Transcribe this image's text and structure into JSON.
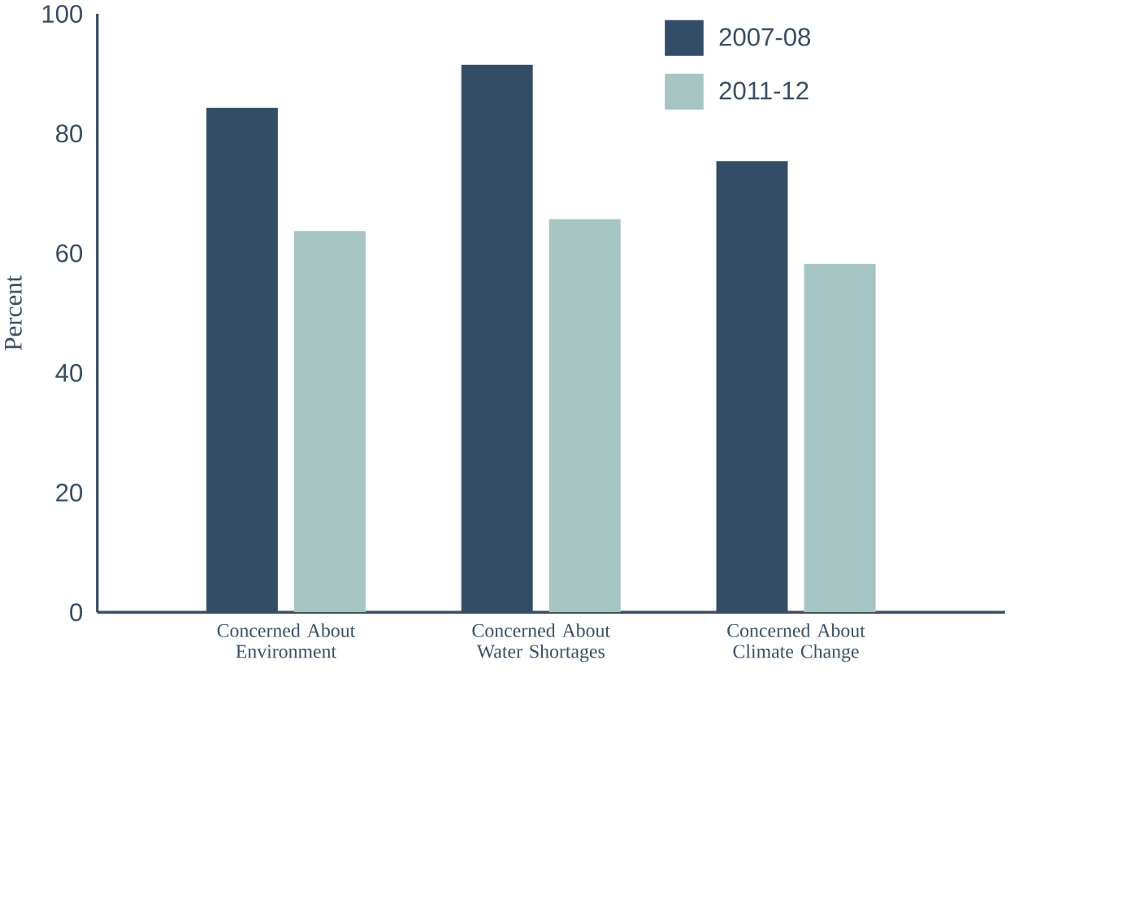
{
  "chart_data": {
    "type": "bar",
    "ylabel": "Percent",
    "categories": [
      "Concerned About Environment",
      "Concerned About Water Shortages",
      "Concerned About Climate Change"
    ],
    "series": [
      {
        "name": "2007-08",
        "color": "#344d66",
        "values": [
          84.3,
          91.5,
          75.4
        ]
      },
      {
        "name": "2011-12",
        "color": "#a5c4c2",
        "values": [
          63.7,
          65.7,
          58.2
        ]
      }
    ],
    "ylim": [
      0,
      100
    ],
    "yticks": [
      0,
      20,
      40,
      60,
      80,
      100
    ],
    "grid": false,
    "legend": "top right"
  }
}
